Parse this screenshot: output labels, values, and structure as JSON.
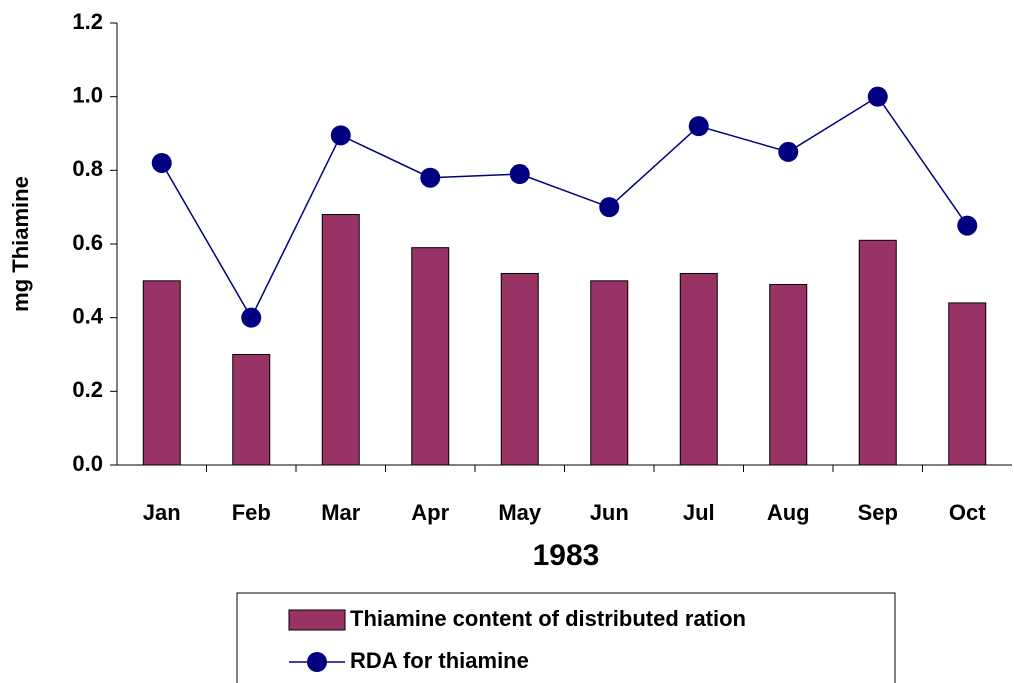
{
  "chart_data": {
    "type": "bar",
    "xlabel": "1983",
    "ylabel": "mg Thiamine",
    "categories": [
      "Jan",
      "Feb",
      "Mar",
      "Apr",
      "May",
      "Jun",
      "Jul",
      "Aug",
      "Sep",
      "Oct"
    ],
    "series": [
      {
        "name": "Thiamine content of distributed ration",
        "type": "bar",
        "color": "#993366",
        "values": [
          0.5,
          0.3,
          0.68,
          0.59,
          0.52,
          0.5,
          0.52,
          0.49,
          0.61,
          0.44
        ]
      },
      {
        "name": "RDA for thiamine",
        "type": "line",
        "color": "#000080",
        "values": [
          0.82,
          0.4,
          0.895,
          0.78,
          0.79,
          0.7,
          0.92,
          0.85,
          1.0,
          0.65
        ]
      }
    ],
    "ylim": [
      0,
      1.2
    ],
    "yticks": [
      {
        "value": 0,
        "label": "0.0"
      },
      0.2,
      0.4,
      0.6,
      0.8,
      {
        "value": 1,
        "label": "1.0"
      },
      1.2
    ]
  }
}
